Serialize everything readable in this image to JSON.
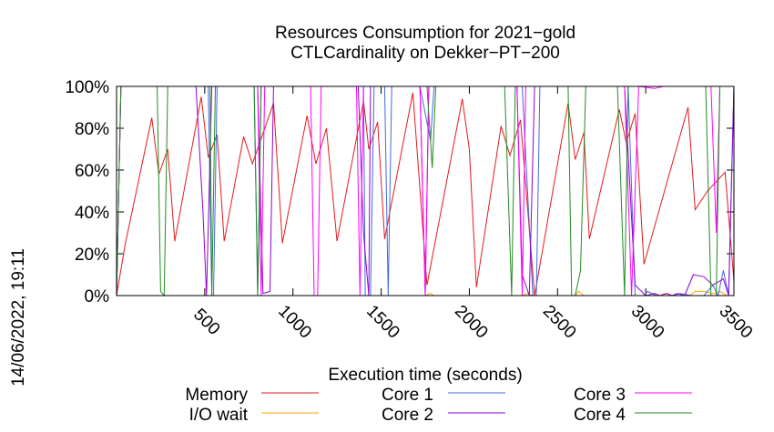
{
  "chart_data": {
    "type": "line",
    "title": [
      "Resources Consumption for 2021−gold",
      "CTLCardinality on Dekker−PT−200"
    ],
    "xlabel": "Execution time (seconds)",
    "ylabel": "",
    "xlim": [
      0,
      3500
    ],
    "ylim": [
      0,
      100
    ],
    "x_ticks": [
      {
        "value": 500,
        "label": "500"
      },
      {
        "value": 1000,
        "label": "1000"
      },
      {
        "value": 1500,
        "label": "1500"
      },
      {
        "value": 2000,
        "label": "2000"
      },
      {
        "value": 2500,
        "label": "2500"
      },
      {
        "value": 3000,
        "label": "3000"
      },
      {
        "value": 3500,
        "label": "3500"
      }
    ],
    "y_ticks": [
      {
        "value": 0,
        "label": "0%"
      },
      {
        "value": 20,
        "label": "20%"
      },
      {
        "value": 40,
        "label": "40%"
      },
      {
        "value": 60,
        "label": "60%"
      },
      {
        "value": 80,
        "label": "80%"
      },
      {
        "value": 100,
        "label": "100%"
      }
    ],
    "date_label": "14/06/2022, 19:11",
    "legend_position": "bottom",
    "series": [
      {
        "name": "Memory",
        "color": "#e41a1c",
        "points": [
          [
            0,
            0
          ],
          [
            50,
            25
          ],
          [
            100,
            45
          ],
          [
            200,
            85
          ],
          [
            240,
            58
          ],
          [
            290,
            70
          ],
          [
            330,
            26
          ],
          [
            480,
            95
          ],
          [
            520,
            66
          ],
          [
            570,
            77
          ],
          [
            610,
            26
          ],
          [
            720,
            76
          ],
          [
            770,
            63
          ],
          [
            890,
            92
          ],
          [
            940,
            25
          ],
          [
            1080,
            86
          ],
          [
            1130,
            63
          ],
          [
            1190,
            80
          ],
          [
            1250,
            26
          ],
          [
            1400,
            93
          ],
          [
            1430,
            70
          ],
          [
            1480,
            83
          ],
          [
            1520,
            27
          ],
          [
            1680,
            97
          ],
          [
            1760,
            5
          ],
          [
            1960,
            94
          ],
          [
            2000,
            70
          ],
          [
            2040,
            4
          ],
          [
            2180,
            81
          ],
          [
            2230,
            67
          ],
          [
            2290,
            84
          ],
          [
            2370,
            0
          ],
          [
            2560,
            92
          ],
          [
            2600,
            65
          ],
          [
            2650,
            78
          ],
          [
            2680,
            27
          ],
          [
            2850,
            89
          ],
          [
            2890,
            73
          ],
          [
            2940,
            87
          ],
          [
            2990,
            15
          ],
          [
            3240,
            90
          ],
          [
            3280,
            41
          ],
          [
            3350,
            50
          ],
          [
            3450,
            59
          ],
          [
            3500,
            7
          ]
        ]
      },
      {
        "name": "I/O wait",
        "color": "#ffa500",
        "points": [
          [
            0,
            0
          ],
          [
            1750,
            0
          ],
          [
            1780,
            1
          ],
          [
            1800,
            0
          ],
          [
            2300,
            0
          ],
          [
            2330,
            1
          ],
          [
            2360,
            0
          ],
          [
            2600,
            0
          ],
          [
            2620,
            2
          ],
          [
            2650,
            0
          ],
          [
            3080,
            0
          ],
          [
            3110,
            1
          ],
          [
            3150,
            0
          ],
          [
            3250,
            0
          ],
          [
            3280,
            2
          ],
          [
            3330,
            2
          ],
          [
            3380,
            1
          ],
          [
            3420,
            2
          ],
          [
            3460,
            0
          ],
          [
            3500,
            0
          ]
        ]
      },
      {
        "name": "Core 1",
        "color": "#4169e1",
        "points": [
          [
            0,
            0
          ],
          [
            25,
            100
          ],
          [
            520,
            100
          ],
          [
            540,
            0
          ],
          [
            550,
            0
          ],
          [
            570,
            100
          ],
          [
            780,
            100
          ],
          [
            800,
            0
          ],
          [
            820,
            100
          ],
          [
            1400,
            100
          ],
          [
            1410,
            0
          ],
          [
            1440,
            0
          ],
          [
            1460,
            100
          ],
          [
            1520,
            100
          ],
          [
            1540,
            0
          ],
          [
            1560,
            100
          ],
          [
            1720,
            100
          ],
          [
            1780,
            74
          ],
          [
            1800,
            100
          ],
          [
            2300,
            100
          ],
          [
            2360,
            0
          ],
          [
            2380,
            0
          ],
          [
            2400,
            100
          ],
          [
            2900,
            100
          ],
          [
            2940,
            0
          ],
          [
            2990,
            0
          ],
          [
            3010,
            2
          ],
          [
            3060,
            0
          ],
          [
            3140,
            0
          ],
          [
            3200,
            1
          ],
          [
            3260,
            0
          ],
          [
            3330,
            0
          ],
          [
            3380,
            5
          ],
          [
            3410,
            0
          ],
          [
            3440,
            12
          ],
          [
            3470,
            0
          ],
          [
            3500,
            100
          ]
        ]
      },
      {
        "name": "Core 2",
        "color": "#9400d3",
        "points": [
          [
            0,
            0
          ],
          [
            25,
            100
          ],
          [
            450,
            100
          ],
          [
            490,
            40
          ],
          [
            510,
            0
          ],
          [
            540,
            100
          ],
          [
            800,
            100
          ],
          [
            830,
            1
          ],
          [
            870,
            2
          ],
          [
            890,
            100
          ],
          [
            1370,
            100
          ],
          [
            1400,
            30
          ],
          [
            1430,
            0
          ],
          [
            1440,
            100
          ],
          [
            1720,
            100
          ],
          [
            1750,
            0
          ],
          [
            1770,
            100
          ],
          [
            2270,
            100
          ],
          [
            2300,
            10
          ],
          [
            2340,
            0
          ],
          [
            2370,
            100
          ],
          [
            2880,
            100
          ],
          [
            2940,
            5
          ],
          [
            3000,
            0
          ],
          [
            3050,
            1
          ],
          [
            3080,
            0
          ],
          [
            3120,
            1
          ],
          [
            3150,
            0
          ],
          [
            3180,
            1
          ],
          [
            3220,
            0
          ],
          [
            3270,
            10
          ],
          [
            3330,
            9
          ],
          [
            3380,
            5
          ],
          [
            3440,
            8
          ],
          [
            3470,
            0
          ],
          [
            3500,
            100
          ]
        ]
      },
      {
        "name": "Core 3",
        "color": "#ff00ff",
        "points": [
          [
            0,
            0
          ],
          [
            25,
            100
          ],
          [
            800,
            100
          ],
          [
            820,
            0
          ],
          [
            840,
            100
          ],
          [
            1100,
            100
          ],
          [
            1120,
            0
          ],
          [
            1140,
            0
          ],
          [
            1160,
            100
          ],
          [
            1360,
            100
          ],
          [
            1380,
            0
          ],
          [
            1400,
            100
          ],
          [
            1720,
            100
          ],
          [
            1750,
            0
          ],
          [
            1770,
            100
          ],
          [
            2270,
            100
          ],
          [
            2300,
            0
          ],
          [
            2320,
            100
          ],
          [
            2880,
            100
          ],
          [
            2920,
            0
          ],
          [
            2960,
            100
          ],
          [
            3050,
            99
          ],
          [
            3100,
            100
          ],
          [
            3370,
            100
          ],
          [
            3400,
            30
          ],
          [
            3420,
            100
          ],
          [
            3500,
            100
          ]
        ]
      },
      {
        "name": "Core 4",
        "color": "#228b22",
        "points": [
          [
            0,
            0
          ],
          [
            25,
            100
          ],
          [
            230,
            100
          ],
          [
            250,
            2
          ],
          [
            270,
            0
          ],
          [
            290,
            100
          ],
          [
            530,
            100
          ],
          [
            540,
            0
          ],
          [
            560,
            100
          ],
          [
            780,
            100
          ],
          [
            800,
            0
          ],
          [
            820,
            100
          ],
          [
            1600,
            100
          ],
          [
            1620,
            100
          ],
          [
            1760,
            100
          ],
          [
            1790,
            61
          ],
          [
            1810,
            100
          ],
          [
            2200,
            100
          ],
          [
            2240,
            0
          ],
          [
            2260,
            100
          ],
          [
            2560,
            100
          ],
          [
            2580,
            0
          ],
          [
            2600,
            0
          ],
          [
            2630,
            12
          ],
          [
            2660,
            100
          ],
          [
            2840,
            100
          ],
          [
            2880,
            0
          ],
          [
            2900,
            100
          ],
          [
            3340,
            100
          ],
          [
            3370,
            0
          ],
          [
            3400,
            0
          ],
          [
            3420,
            100
          ],
          [
            3500,
            100
          ]
        ]
      }
    ]
  }
}
